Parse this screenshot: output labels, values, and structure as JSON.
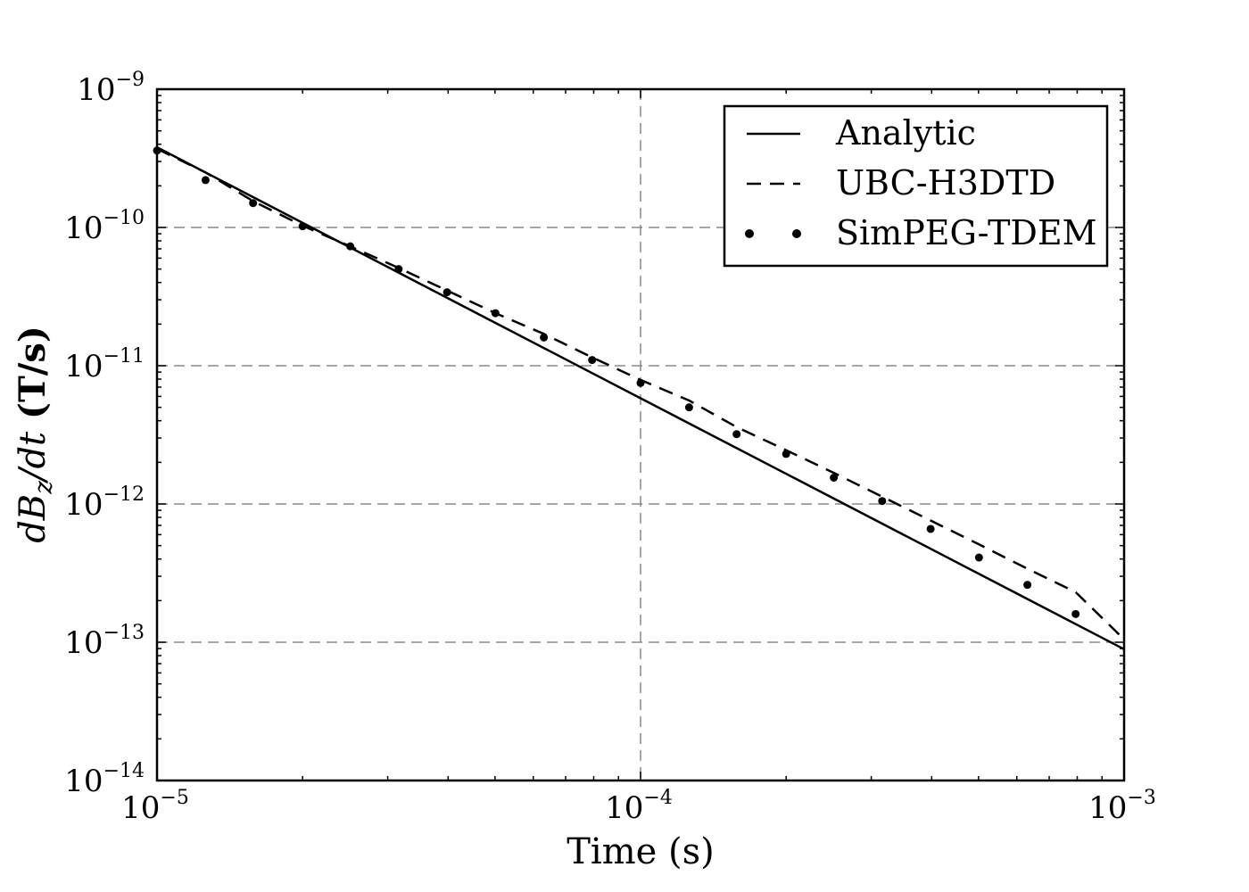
{
  "chart_data": {
    "type": "line",
    "xlabel": "Time (s)",
    "ylabel": {
      "prefix": "dB",
      "sub": "z",
      "mid": "/dt",
      "suffix": " (T/s)"
    },
    "xscale": "log",
    "yscale": "log",
    "xlim": [
      1e-05,
      0.001
    ],
    "ylim": [
      1e-14,
      1e-09
    ],
    "x_ticks": [
      {
        "base": "10",
        "exp": "−5"
      },
      {
        "base": "10",
        "exp": "−4"
      },
      {
        "base": "10",
        "exp": "−3"
      }
    ],
    "y_ticks": [
      {
        "base": "10",
        "exp": "−14"
      },
      {
        "base": "10",
        "exp": "−13"
      },
      {
        "base": "10",
        "exp": "−12"
      },
      {
        "base": "10",
        "exp": "−11"
      },
      {
        "base": "10",
        "exp": "−10"
      },
      {
        "base": "10",
        "exp": "−9"
      }
    ],
    "grid": "major, dashed gray",
    "legend_position": "top-right",
    "series": [
      {
        "name": "Analytic",
        "style": "solid",
        "x": [
          1e-05,
          0.001
        ],
        "y": [
          3.8e-10,
          8.9e-14
        ]
      },
      {
        "name": "UBC-H3DTD",
        "style": "dashed",
        "x": [
          1e-05,
          1.26e-05,
          1.58e-05,
          2e-05,
          2.51e-05,
          3.16e-05,
          3.98e-05,
          5.01e-05,
          6.31e-05,
          7.94e-05,
          0.0001,
          0.000126,
          0.000158,
          0.0002,
          0.000251,
          0.000316,
          0.000398,
          0.000501,
          0.000631,
          0.000794,
          0.001
        ],
        "y": [
          3.7e-10,
          2.5e-10,
          1.55e-10,
          1.03e-10,
          7.3e-11,
          5.1e-11,
          3.5e-11,
          2.4e-11,
          1.7e-11,
          1.15e-11,
          7.9e-12,
          5.6e-12,
          3.6e-12,
          2.45e-12,
          1.68e-12,
          1.13e-12,
          7.6e-13,
          5.1e-13,
          3.4e-13,
          2.3e-13,
          1.05e-13
        ]
      },
      {
        "name": "SimPEG-TDEM",
        "style": "dots",
        "x": [
          1e-05,
          1.26e-05,
          1.58e-05,
          2e-05,
          2.51e-05,
          3.16e-05,
          3.98e-05,
          5.01e-05,
          6.31e-05,
          7.94e-05,
          0.0001,
          0.000126,
          0.000158,
          0.0002,
          0.000251,
          0.000316,
          0.000398,
          0.000501,
          0.000631,
          0.000794
        ],
        "y": [
          3.6e-10,
          2.2e-10,
          1.5e-10,
          1.02e-10,
          7.3e-11,
          5e-11,
          3.4e-11,
          2.4e-11,
          1.6e-11,
          1.1e-11,
          7.5e-12,
          5e-12,
          3.2e-12,
          2.3e-12,
          1.55e-12,
          1.05e-12,
          6.6e-13,
          4.1e-13,
          2.6e-13,
          1.6e-13
        ]
      }
    ]
  }
}
